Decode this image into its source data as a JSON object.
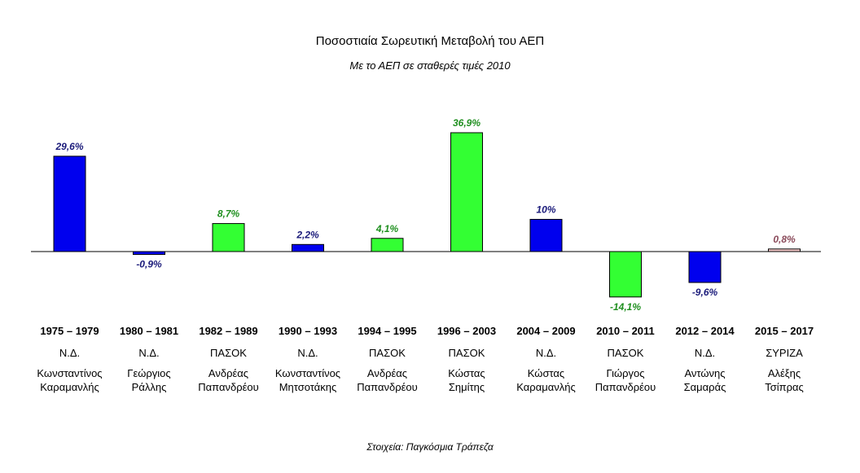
{
  "chart_data": {
    "type": "bar",
    "title": "Ποσοστιαία Σωρευτική Μεταβολή του ΑΕΠ",
    "subtitle": "Με το ΑΕΠ σε σταθερές τιμές 2010",
    "source": "Στοιχεία: Παγκόσμια Τράπεζα",
    "categories": [
      "1975 – 1979",
      "1980 – 1981",
      "1982 – 1989",
      "1990 – 1993",
      "1994 – 1995",
      "1996 – 2003",
      "2004 – 2009",
      "2010 – 2011",
      "2012 – 2014",
      "2015 – 2017"
    ],
    "values": [
      29.6,
      -0.9,
      8.7,
      2.2,
      4.1,
      36.9,
      10,
      -14.1,
      -9.6,
      0.8
    ],
    "value_labels": [
      "29,6%",
      "-0,9%",
      "8,7%",
      "2,2%",
      "4,1%",
      "36,9%",
      "10%",
      "-14,1%",
      "-9,6%",
      "0,8%"
    ],
    "parties": [
      "Ν.Δ.",
      "Ν.Δ.",
      "ΠΑΣΟΚ",
      "Ν.Δ.",
      "ΠΑΣΟΚ",
      "ΠΑΣΟΚ",
      "Ν.Δ.",
      "ΠΑΣΟΚ",
      "Ν.Δ.",
      "ΣΥΡΙΖΑ"
    ],
    "leaders_line1": [
      "Κωνσταντίνος",
      "Γεώργιος",
      "Ανδρέας",
      "Κωνσταντίνος",
      "Ανδρέας",
      "Κώστας",
      "Κώστας",
      "Γιώργος",
      "Αντώνης",
      "Αλέξης"
    ],
    "leaders_line2": [
      "Καραμανλής",
      "Ράλλης",
      "Παπανδρέου",
      "Μητσοτάκης",
      "Παπανδρέου",
      "Σημίτης",
      "Καραμανλής",
      "Παπανδρέου",
      "Σαμαράς",
      "Τσίπρας"
    ],
    "party_colors": {
      "Ν.Δ.": {
        "fill": "#0000ee",
        "label": "#1a1a7a"
      },
      "ΠΑΣΟΚ": {
        "fill": "#33ff33",
        "label": "#1f8f1f"
      },
      "ΣΥΡΙΖΑ": {
        "fill": "#f2c6c6",
        "label": "#8a4a5a"
      }
    },
    "ylim": [
      -14.1,
      36.9
    ],
    "grid": false,
    "legend": "none"
  }
}
